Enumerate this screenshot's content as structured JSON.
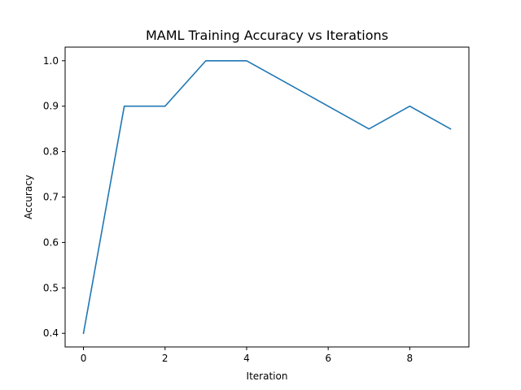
{
  "chart_data": {
    "type": "line",
    "title": "MAML Training Accuracy vs Iterations",
    "xlabel": "Iteration",
    "ylabel": "Accuracy",
    "xlim": [
      -0.45,
      9.45
    ],
    "ylim": [
      0.37,
      1.03
    ],
    "x_ticks": [
      0,
      2,
      4,
      6,
      8
    ],
    "x_tick_labels": [
      "0",
      "2",
      "4",
      "6",
      "8"
    ],
    "y_ticks": [
      0.4,
      0.5,
      0.6,
      0.7,
      0.8,
      0.9,
      1.0
    ],
    "y_tick_labels": [
      "0.4",
      "0.5",
      "0.6",
      "0.7",
      "0.8",
      "0.9",
      "1.0"
    ],
    "grid": false,
    "series": [
      {
        "color": "#1f77b4",
        "x": [
          0,
          1,
          2,
          3,
          4,
          5,
          6,
          7,
          8,
          9
        ],
        "y": [
          0.4,
          0.9,
          0.9,
          1.0,
          1.0,
          0.95,
          0.9,
          0.85,
          0.9,
          0.85
        ]
      }
    ]
  }
}
